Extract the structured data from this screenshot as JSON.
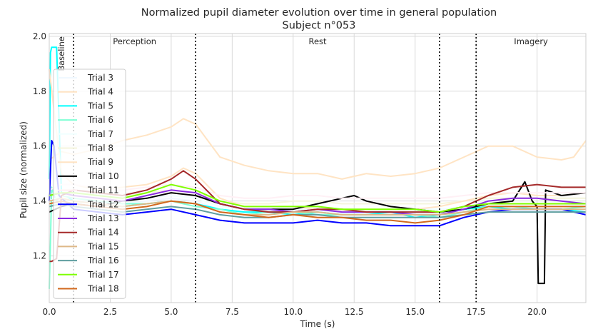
{
  "chart_data": {
    "type": "line",
    "title": "Normalized pupil diameter evolution over time in general population",
    "subtitle": "Subject n°053",
    "xlabel": "Time (s)",
    "ylabel": "Pupil size (normalized)",
    "xlim": [
      0,
      22
    ],
    "ylim": [
      1.03,
      2.01
    ],
    "xticks": [
      0.0,
      2.5,
      5.0,
      7.5,
      10.0,
      12.5,
      15.0,
      17.5,
      20.0
    ],
    "xtick_labels": [
      "0.0",
      "2.5",
      "5.0",
      "7.5",
      "10.0",
      "12.5",
      "15.0",
      "17.5",
      "20.0"
    ],
    "yticks": [
      1.2,
      1.4,
      1.6,
      1.8,
      2.0
    ],
    "ytick_labels": [
      "1.2",
      "1.4",
      "1.6",
      "1.8",
      "2.0"
    ],
    "grid": true,
    "legend": "upper-left",
    "phase_markers": [
      1.0,
      6.0,
      16.0,
      17.5
    ],
    "phases": [
      {
        "label": "Baseline",
        "x": 0.5,
        "rotated": true
      },
      {
        "label": "Perception",
        "x": 3.5
      },
      {
        "label": "Rest",
        "x": 11.0
      },
      {
        "label": "Imagery",
        "x": 19.75
      }
    ],
    "series": [
      {
        "name": "Trial 3",
        "color": "#f0f8ff",
        "x": [
          0,
          0.5,
          1,
          2,
          3,
          4,
          5,
          6,
          7,
          8,
          9,
          10,
          11,
          12,
          13,
          14,
          15,
          16,
          17,
          18,
          19,
          20,
          21,
          22
        ],
        "y": [
          1.38,
          1.4,
          1.41,
          1.4,
          1.39,
          1.4,
          1.41,
          1.4,
          1.37,
          1.36,
          1.36,
          1.37,
          1.37,
          1.36,
          1.36,
          1.36,
          1.36,
          1.36,
          1.37,
          1.38,
          1.38,
          1.38,
          1.38,
          1.38
        ]
      },
      {
        "name": "Trial 4",
        "color": "#ffe4c4",
        "x": [
          0,
          0.5,
          1,
          2,
          3,
          4,
          5,
          5.5,
          6,
          7,
          8,
          9,
          10,
          11,
          12,
          13,
          14,
          15,
          16,
          17,
          18,
          19,
          20,
          21,
          21.5,
          22
        ],
        "y": [
          1.55,
          1.58,
          1.57,
          1.59,
          1.62,
          1.64,
          1.67,
          1.7,
          1.68,
          1.56,
          1.53,
          1.51,
          1.5,
          1.5,
          1.48,
          1.5,
          1.49,
          1.5,
          1.52,
          1.56,
          1.6,
          1.6,
          1.56,
          1.55,
          1.56,
          1.62
        ]
      },
      {
        "name": "Trial 5",
        "color": "#00ffff",
        "x": [
          0,
          0.05,
          0.1,
          0.15,
          0.3,
          0.5,
          1,
          2,
          3,
          4,
          5,
          6,
          7,
          8,
          9,
          10,
          11,
          12,
          13,
          14,
          15,
          16,
          17,
          18,
          19,
          20,
          21,
          22
        ],
        "y": [
          1.48,
          1.94,
          1.96,
          1.96,
          1.96,
          1.43,
          1.4,
          1.39,
          1.38,
          1.39,
          1.4,
          1.39,
          1.37,
          1.36,
          1.36,
          1.35,
          1.36,
          1.35,
          1.35,
          1.36,
          1.34,
          1.35,
          1.37,
          1.38,
          1.37,
          1.37,
          1.37,
          1.36
        ]
      },
      {
        "name": "Trial 6",
        "color": "#7fffd4",
        "x": [
          0,
          0.05,
          0.1,
          0.2,
          0.3,
          0.5,
          1,
          2,
          3,
          4,
          5,
          6,
          7,
          8,
          9,
          10,
          11,
          12,
          13,
          14,
          15,
          16,
          17,
          18,
          19,
          20,
          21,
          22
        ],
        "y": [
          1.08,
          1.25,
          1.45,
          1.42,
          1.4,
          1.42,
          1.41,
          1.4,
          1.39,
          1.39,
          1.4,
          1.38,
          1.37,
          1.35,
          1.36,
          1.36,
          1.35,
          1.35,
          1.35,
          1.35,
          1.35,
          1.34,
          1.36,
          1.38,
          1.38,
          1.37,
          1.37,
          1.38
        ]
      },
      {
        "name": "Trial 7",
        "color": "#f0ffff",
        "x": [
          0,
          0.5,
          1,
          2,
          3,
          4,
          5,
          6,
          7,
          8,
          9,
          10,
          11,
          12,
          13,
          14,
          15,
          16,
          17,
          18,
          19,
          20,
          21,
          22
        ],
        "y": [
          1.4,
          1.42,
          1.42,
          1.41,
          1.4,
          1.41,
          1.42,
          1.41,
          1.38,
          1.37,
          1.37,
          1.38,
          1.38,
          1.37,
          1.37,
          1.37,
          1.37,
          1.37,
          1.38,
          1.39,
          1.39,
          1.39,
          1.39,
          1.39
        ]
      },
      {
        "name": "Trial 8",
        "color": "#f5f5dc",
        "x": [
          0,
          0.5,
          1,
          2,
          3,
          4,
          5,
          6,
          7,
          8,
          9,
          10,
          11,
          12,
          13,
          14,
          15,
          16,
          17,
          18,
          19,
          20,
          21,
          22
        ],
        "y": [
          1.42,
          1.44,
          1.44,
          1.43,
          1.42,
          1.43,
          1.44,
          1.43,
          1.4,
          1.39,
          1.39,
          1.4,
          1.4,
          1.39,
          1.39,
          1.39,
          1.39,
          1.39,
          1.4,
          1.41,
          1.41,
          1.41,
          1.41,
          1.41
        ]
      },
      {
        "name": "Trial 9",
        "color": "#ffe4c4",
        "x": [
          0,
          0.5,
          1,
          2,
          3,
          4,
          5,
          5.5,
          6,
          7,
          8,
          9,
          10,
          11,
          12,
          13,
          14,
          15,
          16,
          17,
          18,
          19,
          20,
          21,
          22
        ],
        "y": [
          1.88,
          1.5,
          1.46,
          1.44,
          1.45,
          1.46,
          1.49,
          1.52,
          1.5,
          1.41,
          1.38,
          1.38,
          1.38,
          1.37,
          1.37,
          1.37,
          1.37,
          1.37,
          1.38,
          1.4,
          1.42,
          1.43,
          1.42,
          1.42,
          1.43
        ]
      },
      {
        "name": "Trial 10",
        "color": "#000000",
        "x": [
          0,
          0.5,
          1,
          2,
          3,
          4,
          5,
          6,
          7,
          8,
          9,
          10,
          11,
          12,
          12.5,
          13,
          14,
          15,
          16,
          17,
          18,
          19,
          19.5,
          19.8,
          20,
          20.05,
          20.2,
          20.3,
          20.35,
          21,
          22
        ],
        "y": [
          1.36,
          1.38,
          1.39,
          1.38,
          1.4,
          1.41,
          1.43,
          1.42,
          1.39,
          1.37,
          1.37,
          1.37,
          1.39,
          1.41,
          1.42,
          1.4,
          1.38,
          1.37,
          1.36,
          1.37,
          1.39,
          1.4,
          1.47,
          1.4,
          1.38,
          1.1,
          1.1,
          1.1,
          1.44,
          1.42,
          1.43
        ]
      },
      {
        "name": "Trial 11",
        "color": "#fff0f5",
        "x": [
          0,
          0.5,
          1,
          2,
          3,
          4,
          5,
          6,
          7,
          8,
          9,
          10,
          11,
          12,
          13,
          14,
          15,
          16,
          17,
          18,
          19,
          20,
          21,
          22
        ],
        "y": [
          1.44,
          1.46,
          1.46,
          1.45,
          1.44,
          1.45,
          1.46,
          1.45,
          1.42,
          1.41,
          1.41,
          1.42,
          1.42,
          1.41,
          1.41,
          1.41,
          1.41,
          1.41,
          1.42,
          1.43,
          1.43,
          1.43,
          1.43,
          1.43
        ]
      },
      {
        "name": "Trial 12",
        "color": "#0000ff",
        "x": [
          0,
          0.1,
          0.2,
          0.4,
          1,
          2,
          3,
          4,
          5,
          6,
          7,
          8,
          9,
          10,
          11,
          12,
          13,
          14,
          15,
          16,
          17,
          18,
          19,
          20,
          21,
          22
        ],
        "y": [
          1.4,
          1.62,
          1.6,
          1.42,
          1.37,
          1.36,
          1.35,
          1.36,
          1.37,
          1.35,
          1.33,
          1.32,
          1.32,
          1.32,
          1.33,
          1.32,
          1.32,
          1.31,
          1.31,
          1.31,
          1.34,
          1.36,
          1.37,
          1.37,
          1.37,
          1.35
        ]
      },
      {
        "name": "Trial 13",
        "color": "#8a2be2",
        "x": [
          0,
          0.5,
          1,
          2,
          3,
          4,
          5,
          6,
          7,
          8,
          9,
          10,
          11,
          12,
          13,
          14,
          15,
          16,
          17,
          18,
          19,
          20,
          21,
          22
        ],
        "y": [
          1.42,
          1.43,
          1.42,
          1.41,
          1.4,
          1.42,
          1.44,
          1.43,
          1.39,
          1.37,
          1.37,
          1.36,
          1.37,
          1.36,
          1.36,
          1.36,
          1.35,
          1.35,
          1.37,
          1.4,
          1.41,
          1.41,
          1.4,
          1.39
        ]
      },
      {
        "name": "Trial 14",
        "color": "#a52a2a",
        "x": [
          0,
          0.1,
          0.3,
          0.5,
          1,
          2,
          3,
          4,
          5,
          5.5,
          6,
          7,
          8,
          9,
          10,
          11,
          12,
          13,
          14,
          15,
          16,
          17,
          18,
          19,
          20,
          21,
          22
        ],
        "y": [
          1.18,
          1.18,
          1.19,
          1.42,
          1.44,
          1.43,
          1.42,
          1.44,
          1.48,
          1.51,
          1.48,
          1.39,
          1.37,
          1.36,
          1.36,
          1.37,
          1.37,
          1.36,
          1.36,
          1.36,
          1.36,
          1.38,
          1.42,
          1.45,
          1.46,
          1.45,
          1.45
        ]
      },
      {
        "name": "Trial 15",
        "color": "#deb887",
        "x": [
          0,
          0.5,
          1,
          2,
          3,
          4,
          5,
          6,
          7,
          8,
          9,
          10,
          11,
          12,
          13,
          14,
          15,
          16,
          17,
          18,
          19,
          20,
          21,
          22
        ],
        "y": [
          1.4,
          1.41,
          1.4,
          1.39,
          1.38,
          1.39,
          1.4,
          1.39,
          1.36,
          1.35,
          1.35,
          1.36,
          1.36,
          1.35,
          1.35,
          1.35,
          1.35,
          1.35,
          1.36,
          1.37,
          1.37,
          1.37,
          1.37,
          1.37
        ]
      },
      {
        "name": "Trial 16",
        "color": "#5f9ea0",
        "x": [
          0,
          0.5,
          1,
          2,
          3,
          4,
          5,
          6,
          7,
          8,
          9,
          10,
          11,
          12,
          13,
          14,
          15,
          16,
          17,
          18,
          19,
          20,
          21,
          22
        ],
        "y": [
          1.38,
          1.39,
          1.38,
          1.37,
          1.36,
          1.37,
          1.38,
          1.37,
          1.35,
          1.34,
          1.34,
          1.35,
          1.35,
          1.34,
          1.34,
          1.34,
          1.34,
          1.34,
          1.35,
          1.36,
          1.36,
          1.36,
          1.36,
          1.36
        ]
      },
      {
        "name": "Trial 17",
        "color": "#7fff00",
        "x": [
          0,
          0.5,
          1,
          2,
          3,
          4,
          5,
          6,
          7,
          8,
          9,
          10,
          11,
          12,
          13,
          14,
          15,
          16,
          17,
          18,
          19,
          20,
          21,
          22
        ],
        "y": [
          1.42,
          1.43,
          1.43,
          1.42,
          1.41,
          1.43,
          1.46,
          1.44,
          1.4,
          1.38,
          1.38,
          1.38,
          1.38,
          1.37,
          1.37,
          1.37,
          1.37,
          1.36,
          1.38,
          1.39,
          1.39,
          1.39,
          1.39,
          1.39
        ]
      },
      {
        "name": "Trial 18",
        "color": "#d2691e",
        "x": [
          0,
          0.5,
          1,
          2,
          3,
          4,
          5,
          6,
          7,
          8,
          9,
          10,
          11,
          12,
          13,
          14,
          15,
          16,
          17,
          18,
          19,
          20,
          21,
          22
        ],
        "y": [
          1.39,
          1.4,
          1.39,
          1.38,
          1.37,
          1.38,
          1.4,
          1.39,
          1.36,
          1.35,
          1.34,
          1.35,
          1.34,
          1.34,
          1.33,
          1.33,
          1.32,
          1.33,
          1.35,
          1.38,
          1.38,
          1.38,
          1.38,
          1.38
        ]
      }
    ]
  }
}
